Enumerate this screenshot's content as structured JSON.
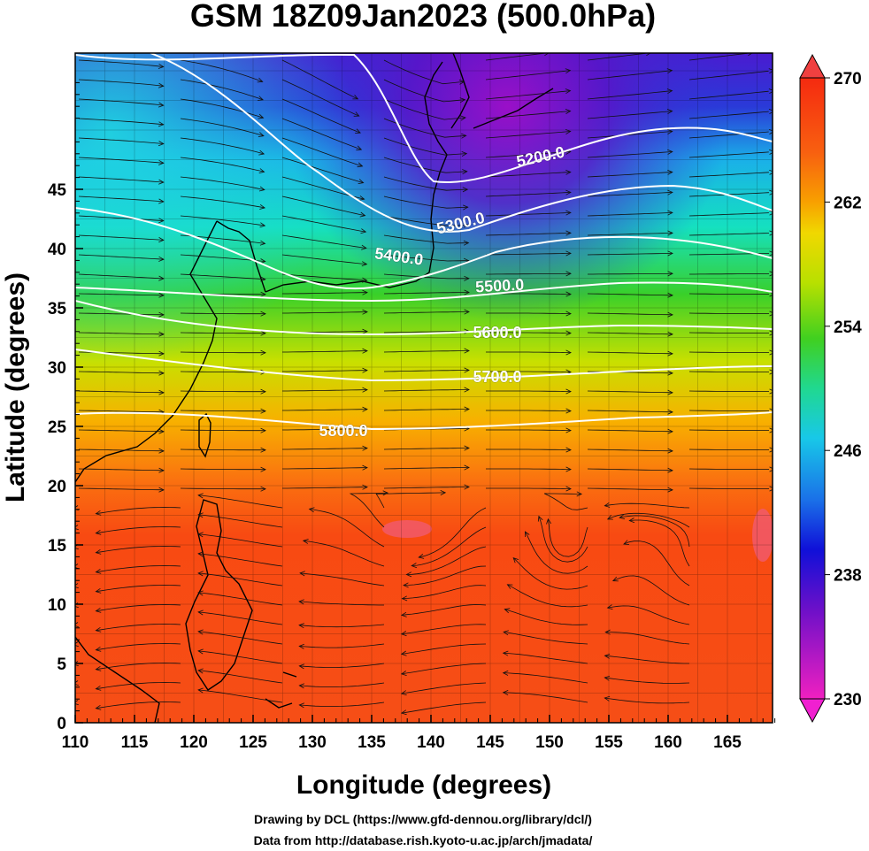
{
  "title": "GSM 18Z09Jan2023 (500.0hPa)",
  "x_axis": {
    "label": "Longitude (degrees)",
    "ticks": [
      "110",
      "115",
      "120",
      "125",
      "130",
      "135",
      "140",
      "145",
      "150",
      "155",
      "160",
      "165"
    ]
  },
  "y_axis": {
    "label": "Latitude  (degrees)",
    "ticks": [
      "0",
      "5",
      "10",
      "15",
      "20",
      "25",
      "30",
      "35",
      "40",
      "45"
    ]
  },
  "colorbar": {
    "ticks": [
      "270",
      "262",
      "254",
      "246",
      "238",
      "230"
    ]
  },
  "contours": [
    {
      "value": "5200.0"
    },
    {
      "value": "5300.0"
    },
    {
      "value": "5400.0"
    },
    {
      "value": "5500.0"
    },
    {
      "value": "5600.0"
    },
    {
      "value": "5700.0"
    },
    {
      "value": "5800.0"
    }
  ],
  "credits": {
    "line1": "Drawing by DCL (https://www.gfd-dennou.org/library/dcl/)",
    "line2": "Data from http://database.rish.kyoto-u.ac.jp/arch/jmadata/"
  }
}
